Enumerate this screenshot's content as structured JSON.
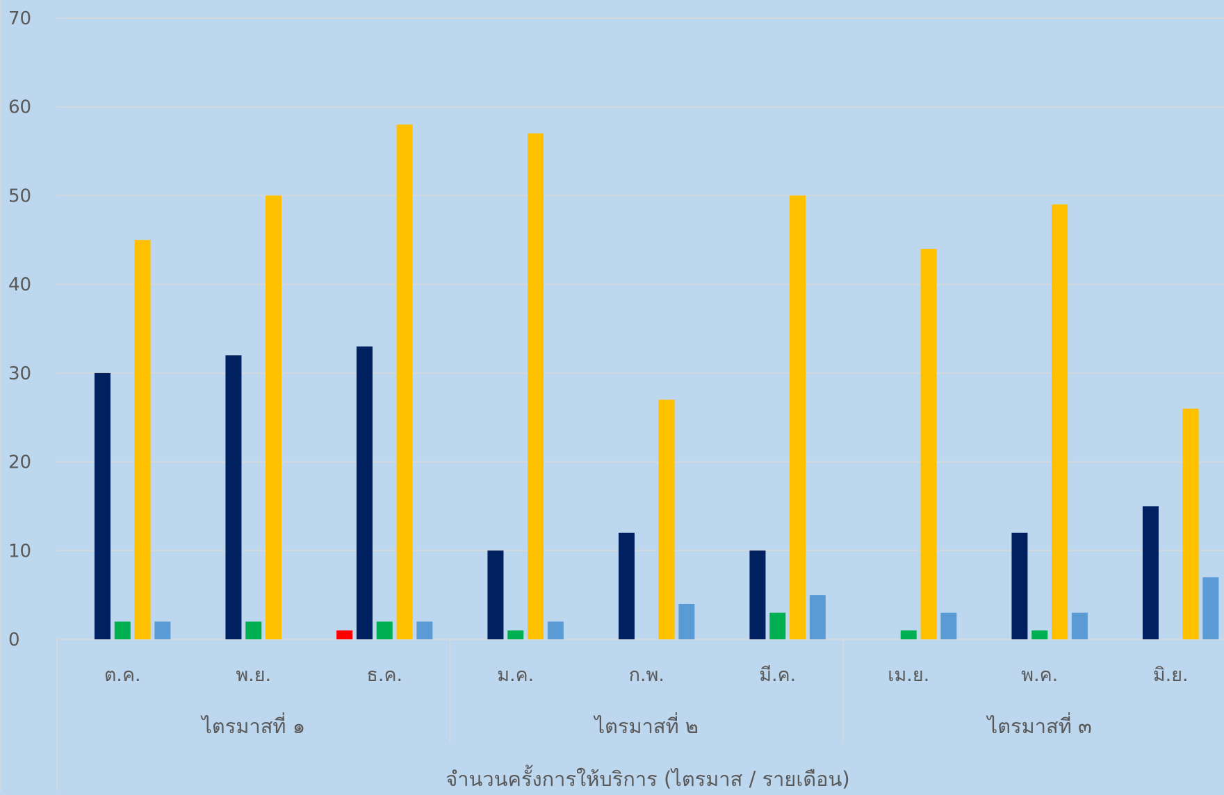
{
  "chart_data": {
    "type": "bar",
    "categories": [
      "ต.ค.",
      "พ.ย.",
      "ธ.ค.",
      "ม.ค.",
      "ก.พ.",
      "มี.ค.",
      "เม.ย.",
      "พ.ค.",
      "มิ.ย."
    ],
    "groups": [
      {
        "label": "ไตรมาสที่ ๑",
        "categories": [
          "ต.ค.",
          "พ.ย.",
          "ธ.ค."
        ]
      },
      {
        "label": "ไตรมาสที่ ๒",
        "categories": [
          "ม.ค.",
          "ก.พ.",
          "มี.ค."
        ]
      },
      {
        "label": "ไตรมาสที่ ๓",
        "categories": [
          "เม.ย.",
          "พ.ค.",
          "มิ.ย."
        ]
      }
    ],
    "series": [
      {
        "color": "#ff0000",
        "values": [
          0,
          0,
          1,
          0,
          0,
          0,
          0,
          0,
          0
        ]
      },
      {
        "color": "#002060",
        "values": [
          30,
          32,
          33,
          10,
          12,
          10,
          0,
          12,
          15
        ]
      },
      {
        "color": "#00b050",
        "values": [
          2,
          2,
          2,
          1,
          0,
          3,
          1,
          1,
          0
        ]
      },
      {
        "color": "#ffc000",
        "values": [
          45,
          50,
          58,
          57,
          27,
          50,
          44,
          49,
          26
        ]
      },
      {
        "color": "#5b9bd5",
        "values": [
          2,
          0,
          2,
          2,
          4,
          5,
          3,
          3,
          7
        ]
      }
    ],
    "yticks": [
      "0",
      "10",
      "20",
      "30",
      "40",
      "50",
      "60",
      "70"
    ],
    "ylim": [
      0,
      70
    ],
    "xlabel": "จำนวนครั้งการให้บริการ (ไตรมาส / รายเดือน)",
    "grid": true,
    "colors": {
      "background": "#bdd7ee",
      "gridline": "#d9d9d9",
      "text": "#595959"
    }
  }
}
